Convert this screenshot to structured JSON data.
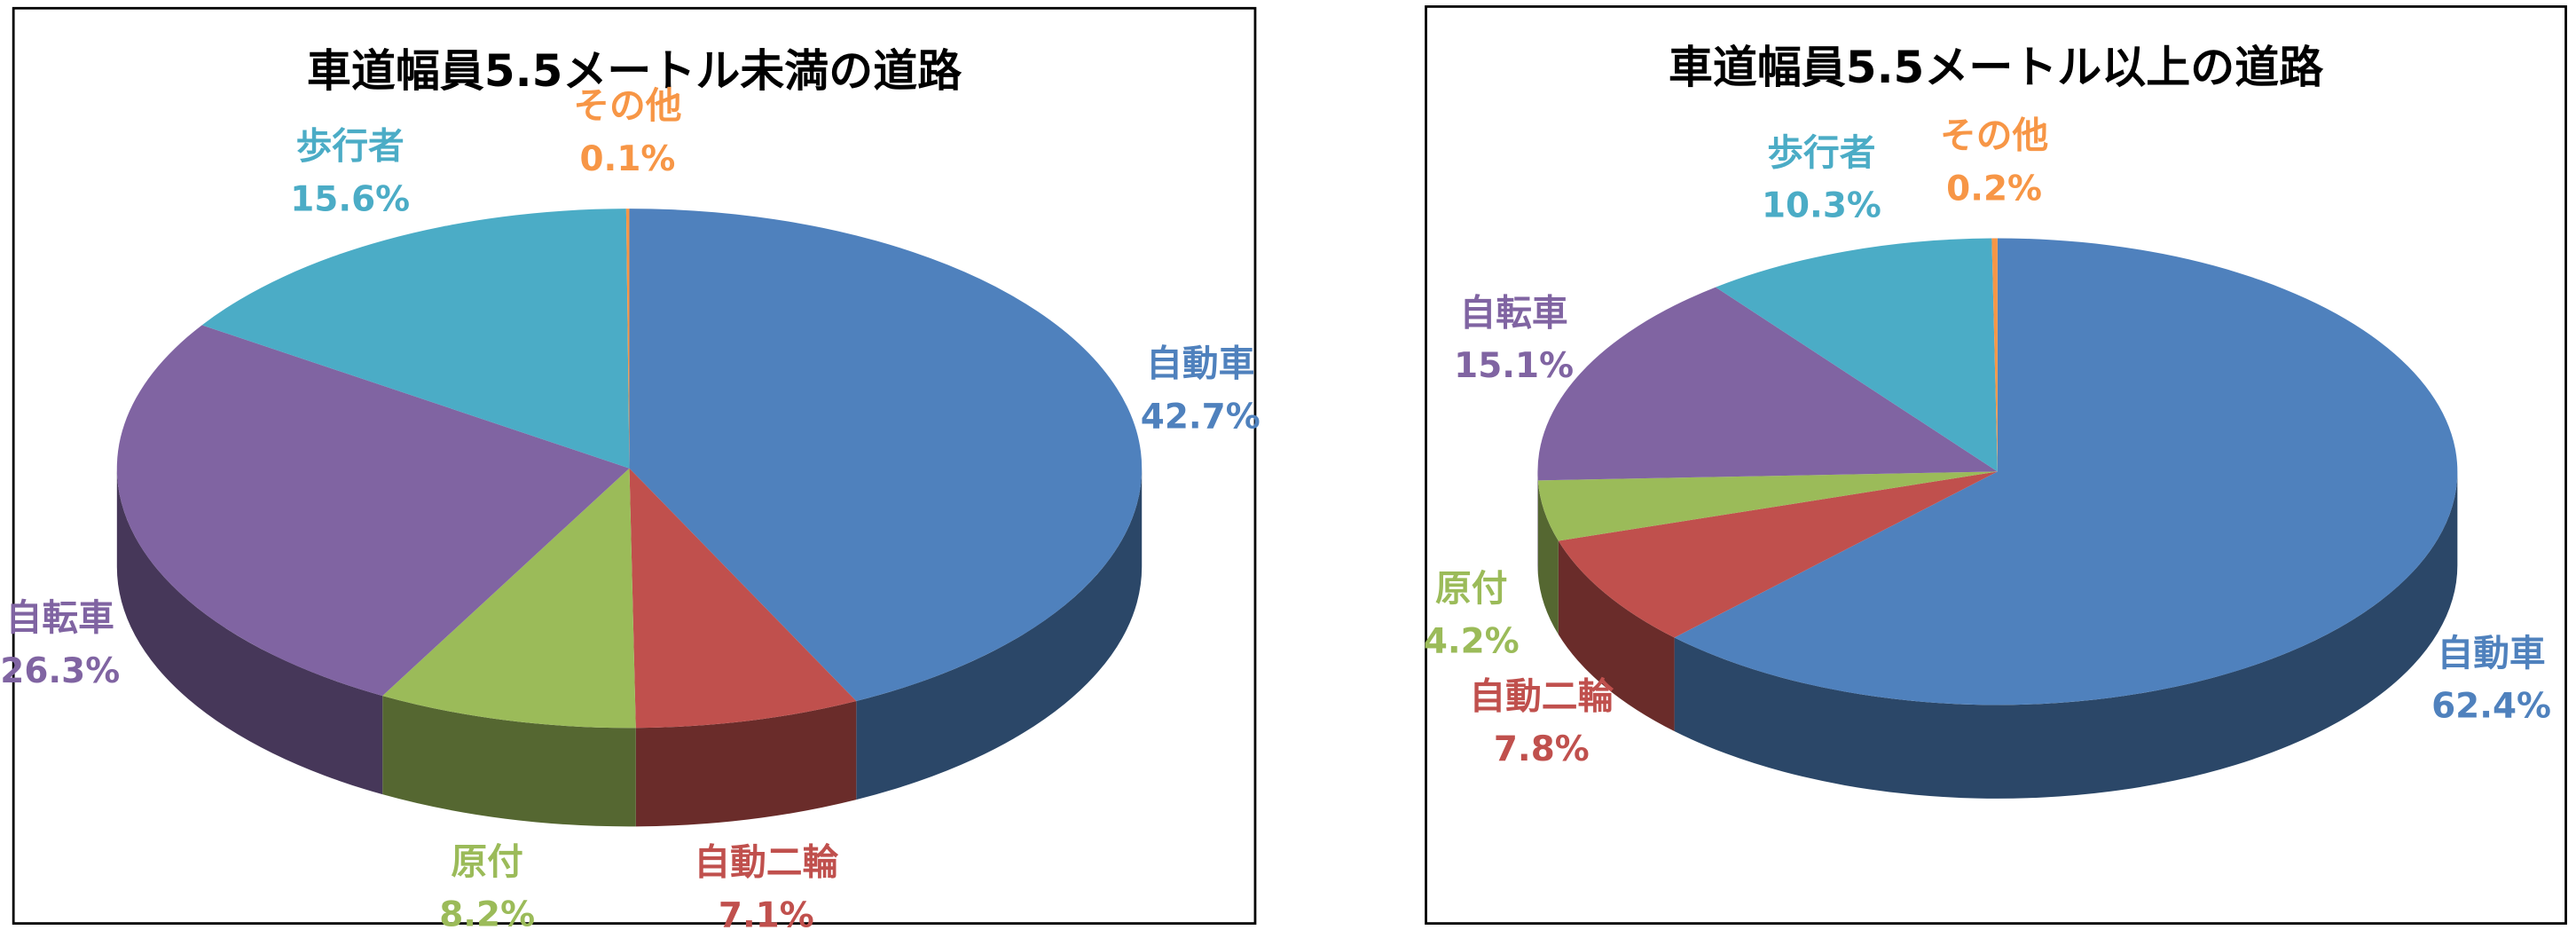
{
  "chart_data": [
    {
      "type": "pie",
      "title": "車道幅員5.5メートル未満の道路",
      "categories": [
        "自動車",
        "自動二輪",
        "原付",
        "自転車",
        "歩行者",
        "その他"
      ],
      "values": [
        42.7,
        7.1,
        8.2,
        26.3,
        15.6,
        0.1
      ],
      "value_labels": [
        "42.7%",
        "7.1%",
        "8.2%",
        "26.3%",
        "15.6%",
        "0.1%"
      ],
      "colors": [
        "#4f81bd",
        "#c0504d",
        "#9bbb59",
        "#8064a2",
        "#4bacc6",
        "#f79646"
      ]
    },
    {
      "type": "pie",
      "title": "車道幅員5.5メートル以上の道路",
      "categories": [
        "自動車",
        "自動二輪",
        "原付",
        "自転車",
        "歩行者",
        "その他"
      ],
      "values": [
        62.4,
        7.8,
        4.2,
        15.1,
        10.3,
        0.2
      ],
      "value_labels": [
        "62.4%",
        "7.8%",
        "4.2%",
        "15.1%",
        "10.3%",
        "0.2%"
      ],
      "colors": [
        "#4f81bd",
        "#c0504d",
        "#9bbb59",
        "#8064a2",
        "#4bacc6",
        "#f79646"
      ]
    }
  ]
}
